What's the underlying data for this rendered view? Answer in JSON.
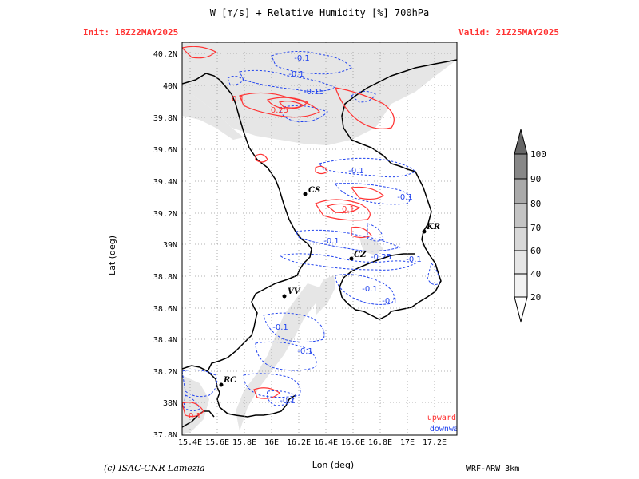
{
  "header": {
    "title": "W [m/s] + Relative Humidity [%] 700hPa",
    "init": "Init: 18Z22MAY2025",
    "valid": "Valid: 21Z25MAY2025"
  },
  "footer": {
    "credit": "(c) ISAC-CNR Lamezia",
    "model": "WRF-ARW 3km"
  },
  "axes": {
    "xlabel": "Lon (deg)",
    "ylabel": "Lat (deg)",
    "x_ticks": [
      "15.4E",
      "15.6E",
      "15.8E",
      "16E",
      "16.2E",
      "16.4E",
      "16.6E",
      "16.8E",
      "17E",
      "17.2E"
    ],
    "y_ticks": [
      "40.2N",
      "40N",
      "39.8N",
      "39.6N",
      "39.4N",
      "39.2N",
      "39N",
      "38.8N",
      "38.6N",
      "38.4N",
      "38.2N",
      "38N",
      "37.8N"
    ]
  },
  "legend": {
    "upward": "upward",
    "downward": "downward",
    "upward_color": "#ff3333",
    "downward_color": "#2244ee"
  },
  "colorbar": {
    "levels": [
      "20",
      "40",
      "60",
      "70",
      "80",
      "90",
      "100"
    ]
  },
  "cities": [
    {
      "code": "CS"
    },
    {
      "code": "KR"
    },
    {
      "code": "CZ"
    },
    {
      "code": "VV"
    },
    {
      "code": "RC"
    }
  ],
  "contour_labels": {
    "l1": "-0.1",
    "l2": "-0.1",
    "l3": "-0.15",
    "l4": "0.1",
    "l5": "0.25",
    "l6": "-0.1",
    "l7": "-0.1",
    "l8": "0.1",
    "l9": "-0.1",
    "l10": "-0.25",
    "l11": "-0.1",
    "l12": "-0.1",
    "l13": "-0.1",
    "l14": "-0.1",
    "l15": "-0.1",
    "l16": "-0.1",
    "l17": "0.1"
  }
}
